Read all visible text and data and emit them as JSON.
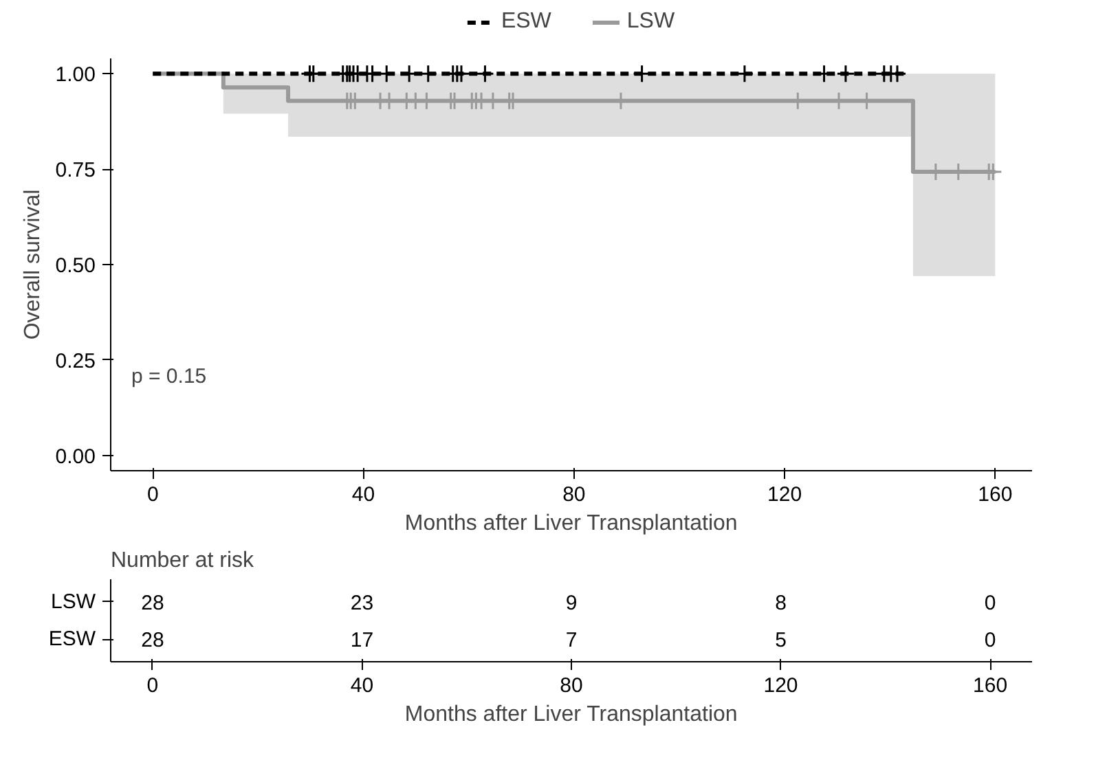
{
  "chart_data": [
    {
      "type": "step",
      "xlabel": "Months after Liver Transplantation",
      "ylabel": "Overall survival",
      "xlim": [
        -8,
        167
      ],
      "ylim": [
        -0.04,
        1.04
      ],
      "xticks": [
        0,
        40,
        80,
        120,
        160
      ],
      "yticks": [
        {
          "value": 0,
          "label": "0.00"
        },
        {
          "value": 0.25,
          "label": "0.25"
        },
        {
          "value": 0.5,
          "label": "0.50"
        },
        {
          "value": 0.75,
          "label": "0.75"
        },
        {
          "value": 1,
          "label": "1.00"
        }
      ],
      "grid": false,
      "legend": "top",
      "annotations": [
        "p = 0.15"
      ],
      "series": [
        {
          "name": "LSW",
          "type": "step",
          "color": "#9a9a9a",
          "line_style": "solid",
          "x": [
            0,
            13.4,
            25.7,
            144.4,
            160
          ],
          "values": [
            1,
            0.964,
            0.929,
            0.743,
            0.743
          ],
          "lower": [
            1,
            0.895,
            0.835,
            0.47,
            0.47
          ],
          "upper": [
            1,
            1,
            1,
            1,
            1
          ]
        },
        {
          "name": "ESW",
          "type": "step",
          "color": "#000000",
          "line_style": "dashed",
          "x": [
            0,
            143
          ],
          "values": [
            1,
            1
          ]
        },
        {
          "type": "scatter",
          "color": "#9a9a9a",
          "marker": "cross",
          "x": [
            36.9,
            37.6,
            38.4,
            43.2,
            44.9,
            48.2,
            49.9,
            52,
            56.6,
            57.3,
            60.6,
            61.4,
            62.4,
            64.6,
            67.7,
            68.4,
            88.9,
            122.5,
            130.3,
            135.6
          ],
          "values": [
            0.929,
            0.929,
            0.929,
            0.929,
            0.929,
            0.929,
            0.929,
            0.929,
            0.929,
            0.929,
            0.929,
            0.929,
            0.929,
            0.929,
            0.929,
            0.929,
            0.929,
            0.929,
            0.929,
            0.929
          ]
        },
        {
          "type": "scatter",
          "color": "#9a9a9a",
          "marker": "cross",
          "x": [
            148.7,
            153,
            158.8,
            159.6
          ],
          "values": [
            0.743,
            0.743,
            0.743,
            0.743
          ]
        },
        {
          "type": "scatter",
          "color": "#000000",
          "marker": "cross",
          "x": [
            29.8,
            30.5,
            36.1,
            36.9,
            37.4,
            38.1,
            38.9,
            40.7,
            41.7,
            44.4,
            48.7,
            52.3,
            57,
            57.8,
            58.6,
            63.1,
            92.9,
            112.4,
            127.5,
            131.6,
            138.9,
            140.2,
            141.4
          ],
          "values": [
            1,
            1,
            1,
            1,
            1,
            1,
            1,
            1,
            1,
            1,
            1,
            1,
            1,
            1,
            1,
            1,
            1,
            1,
            1,
            1,
            1,
            1,
            1
          ]
        }
      ]
    },
    {
      "type": "heatmap",
      "data_labels": true,
      "title": "Number at risk",
      "xlabel": "Months after Liver Transplantation",
      "categories": [
        "0",
        "40",
        "80",
        "120",
        "160"
      ],
      "y_categories": [
        "LSW",
        "ESW"
      ],
      "cells": [
        [
          28,
          23,
          9,
          8,
          0
        ],
        [
          28,
          17,
          7,
          5,
          0
        ]
      ]
    }
  ]
}
